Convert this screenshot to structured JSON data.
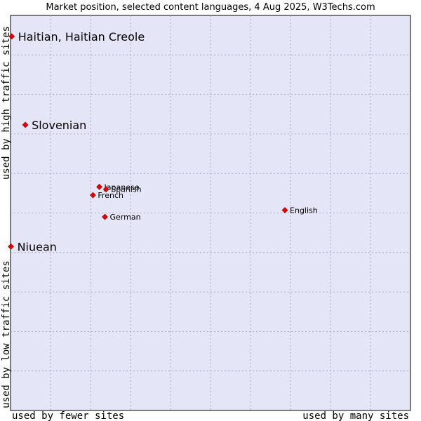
{
  "chart_data": {
    "type": "scatter",
    "title": "Market position, selected content languages, 4 Aug 2025, W3Techs.com",
    "xlabel_low": "used by fewer sites",
    "xlabel_high": "used by many sites",
    "ylabel_low": "used by low traffic sites",
    "ylabel_high": "used by high traffic sites",
    "grid": true,
    "xlim": [
      0,
      100
    ],
    "ylim": [
      0,
      100
    ],
    "colors": {
      "plot_bg": "#e4e6f8",
      "grid": "#9a9ab8",
      "point": "#dd0000",
      "text": "#000000"
    },
    "points": [
      {
        "label": "Haitian, Haitian Creole",
        "x": 0.3,
        "y": 94.7,
        "emphasis": true
      },
      {
        "label": "Slovenian",
        "x": 3.7,
        "y": 72.3,
        "emphasis": true
      },
      {
        "label": "Niuean",
        "x": 0.1,
        "y": 41.5,
        "emphasis": true
      },
      {
        "label": "Japanese",
        "x": 22.2,
        "y": 56.6,
        "emphasis": false
      },
      {
        "label": "Spanish",
        "x": 23.9,
        "y": 56.0,
        "emphasis": false
      },
      {
        "label": "French",
        "x": 20.6,
        "y": 54.5,
        "emphasis": false
      },
      {
        "label": "German",
        "x": 23.6,
        "y": 49.0,
        "emphasis": false
      },
      {
        "label": "English",
        "x": 68.6,
        "y": 50.7,
        "emphasis": false
      }
    ]
  }
}
